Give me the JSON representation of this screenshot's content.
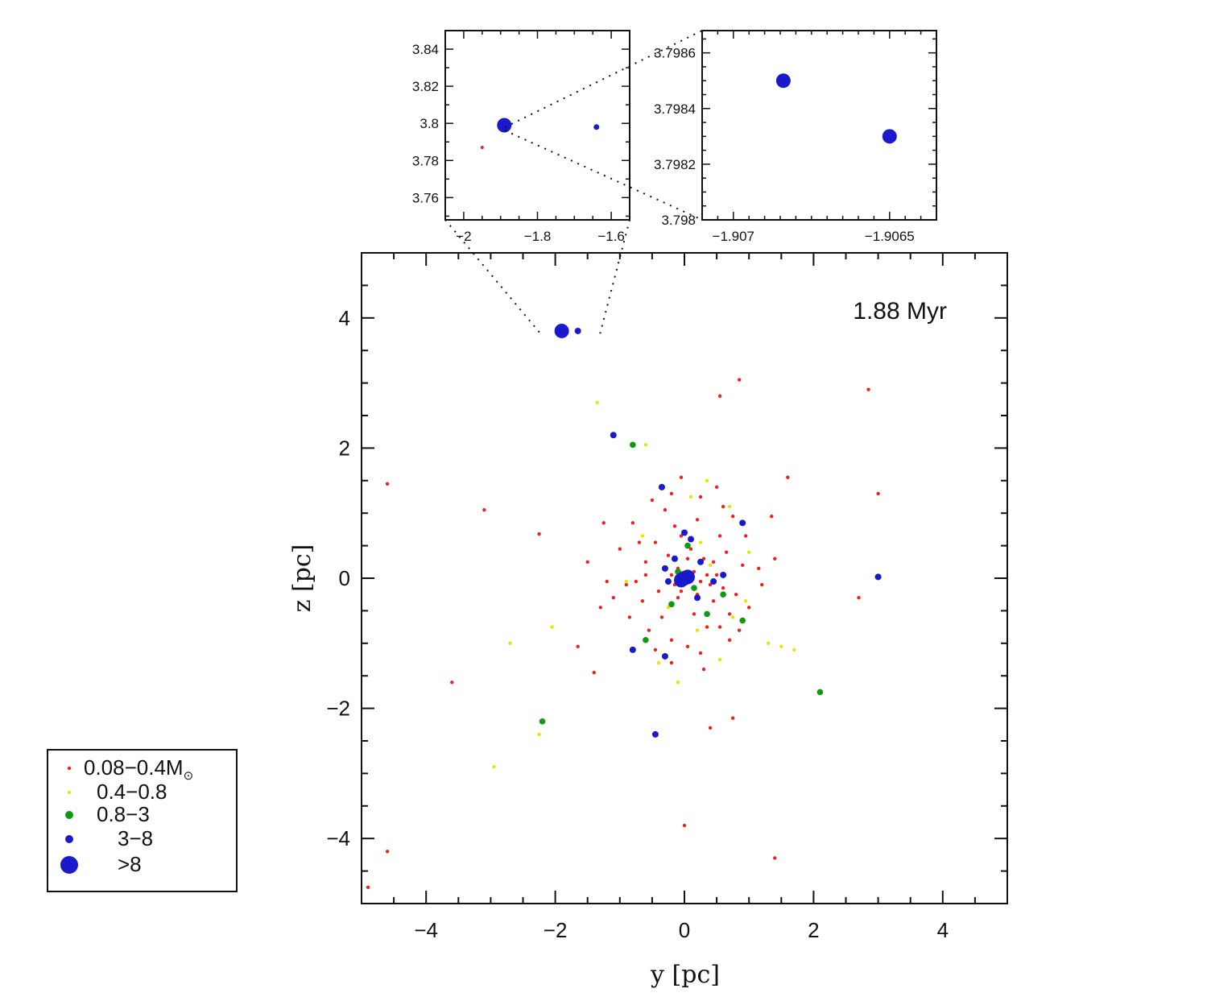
{
  "chart_data": [
    {
      "id": "main",
      "type": "scatter",
      "annotation": "1.88 Myr",
      "xlabel": "y [pc]",
      "ylabel": "z [pc]",
      "xlim": [
        -5,
        5
      ],
      "ylim": [
        -5,
        5
      ],
      "xticks": [
        "−4",
        "−2",
        "0",
        "2",
        "4"
      ],
      "yticks": [
        "−4",
        "−2",
        "0",
        "2",
        "4"
      ],
      "grid": false,
      "legend_position": "bottom-left (outside plot)",
      "series": [
        {
          "name": "0.08−0.4M⊙",
          "legend_label": "0.08−0.4M",
          "legend_sub": "⊙",
          "color": "#ee2222",
          "marker_size": 2.2,
          "points": [
            [
              0.85,
              3.05
            ],
            [
              0.55,
              2.8
            ],
            [
              2.85,
              2.9
            ],
            [
              -4.6,
              1.45
            ],
            [
              -3.1,
              1.05
            ],
            [
              -2.25,
              0.68
            ],
            [
              3.0,
              1.3
            ],
            [
              1.6,
              1.55
            ],
            [
              -0.05,
              1.55
            ],
            [
              -0.2,
              1.3
            ],
            [
              0.6,
              1.1
            ],
            [
              1.35,
              0.95
            ],
            [
              -1.25,
              0.85
            ],
            [
              -1.5,
              0.25
            ],
            [
              -1.3,
              -0.45
            ],
            [
              -1.65,
              -1.05
            ],
            [
              -1.4,
              -1.45
            ],
            [
              -3.6,
              -1.6
            ],
            [
              0.25,
              -1.15
            ],
            [
              0.7,
              -0.95
            ],
            [
              1.4,
              0.3
            ],
            [
              2.7,
              -0.3
            ],
            [
              0.75,
              -2.15
            ],
            [
              0.4,
              -2.3
            ],
            [
              0.0,
              -3.8
            ],
            [
              1.4,
              -4.3
            ],
            [
              -4.6,
              -4.2
            ],
            [
              -4.9,
              -4.75
            ],
            [
              -0.75,
              -0.05
            ],
            [
              -0.6,
              0.25
            ],
            [
              0.55,
              0.65
            ],
            [
              0.9,
              0.2
            ],
            [
              -0.9,
              -0.1
            ],
            [
              0.35,
              -0.75
            ],
            [
              -0.2,
              -0.95
            ],
            [
              0.45,
              -0.35
            ],
            [
              0.2,
              0.9
            ],
            [
              -0.45,
              0.55
            ],
            [
              0.7,
              -0.55
            ],
            [
              -0.35,
              -0.6
            ],
            [
              -0.05,
              0.65
            ],
            [
              0.85,
              -0.8
            ],
            [
              -0.65,
              -0.35
            ],
            [
              0.15,
              -0.55
            ],
            [
              -0.3,
              0.15
            ],
            [
              0.3,
              0.3
            ],
            [
              -0.1,
              -0.3
            ],
            [
              0.1,
              0.45
            ],
            [
              -0.55,
              -0.8
            ],
            [
              0.6,
              -0.15
            ],
            [
              0.25,
              1.25
            ],
            [
              -0.8,
              0.85
            ],
            [
              1.0,
              -0.45
            ],
            [
              -1.0,
              0.45
            ],
            [
              0.95,
              0.65
            ],
            [
              -0.2,
              -1.3
            ],
            [
              0.05,
              -1.05
            ],
            [
              -0.45,
              -1.1
            ],
            [
              0.5,
              0.05
            ],
            [
              -0.25,
              0.35
            ],
            [
              0.4,
              -0.1
            ],
            [
              0.2,
              -0.25
            ],
            [
              -0.15,
              -0.1
            ],
            [
              0.65,
              0.4
            ],
            [
              -0.7,
              0.55
            ],
            [
              1.15,
              0.15
            ],
            [
              -1.1,
              -0.3
            ],
            [
              0.3,
              -1.4
            ],
            [
              -0.3,
              1.05
            ],
            [
              0.75,
              0.95
            ],
            [
              0.15,
              0.1
            ],
            [
              -0.05,
              -0.2
            ],
            [
              0.1,
              -0.05
            ],
            [
              0.35,
              0.05
            ],
            [
              -0.4,
              -0.2
            ],
            [
              0.05,
              0.3
            ],
            [
              -0.2,
              0.05
            ],
            [
              0.55,
              -0.75
            ],
            [
              -0.6,
              0.05
            ],
            [
              0.45,
              0.25
            ],
            [
              -0.1,
              0.15
            ],
            [
              0.25,
              -0.05
            ],
            [
              0.1,
              0.6
            ],
            [
              -0.15,
              0.8
            ],
            [
              0.8,
              -0.25
            ],
            [
              -0.85,
              -0.6
            ],
            [
              0.5,
              1.4
            ],
            [
              -0.5,
              1.2
            ],
            [
              1.2,
              -0.1
            ],
            [
              -1.2,
              -0.05
            ]
          ]
        },
        {
          "name": "0.4−0.8",
          "color": "#e6e600",
          "marker_size": 2.2,
          "points": [
            [
              -1.35,
              2.7
            ],
            [
              -0.6,
              2.05
            ],
            [
              0.35,
              1.5
            ],
            [
              -2.05,
              -0.75
            ],
            [
              -2.7,
              -1.0
            ],
            [
              -2.25,
              -2.4
            ],
            [
              -2.95,
              -2.9
            ],
            [
              1.3,
              -1.0
            ],
            [
              1.5,
              -1.05
            ],
            [
              1.7,
              -1.1
            ],
            [
              1.0,
              0.4
            ],
            [
              -0.4,
              -1.3
            ],
            [
              0.25,
              0.55
            ],
            [
              -0.65,
              0.65
            ],
            [
              0.55,
              -1.25
            ],
            [
              0.95,
              -0.35
            ],
            [
              0.1,
              1.25
            ],
            [
              -0.9,
              -0.05
            ],
            [
              0.75,
              -0.6
            ],
            [
              -0.25,
              -0.45
            ],
            [
              0.4,
              0.2
            ],
            [
              -0.1,
              -1.6
            ],
            [
              0.7,
              1.1
            ],
            [
              0.2,
              -0.8
            ]
          ]
        },
        {
          "name": "0.8−3",
          "color": "#119911",
          "marker_size": 3.8,
          "points": [
            [
              -0.8,
              2.05
            ],
            [
              -2.2,
              -2.2
            ],
            [
              2.1,
              -1.75
            ],
            [
              0.9,
              -0.65
            ],
            [
              -0.6,
              -0.95
            ],
            [
              0.6,
              -0.25
            ],
            [
              -0.2,
              -0.4
            ],
            [
              0.05,
              0.5
            ],
            [
              0.35,
              -0.55
            ],
            [
              -0.1,
              0.1
            ],
            [
              0.15,
              -0.15
            ]
          ]
        },
        {
          "name": "3−8",
          "color": "#1a1acc",
          "marker_size": 4.0,
          "points": [
            [
              -1.1,
              2.2
            ],
            [
              -0.35,
              1.4
            ],
            [
              0.9,
              0.85
            ],
            [
              3.0,
              0.02
            ],
            [
              -0.8,
              -1.1
            ],
            [
              -0.3,
              -1.2
            ],
            [
              -0.45,
              -2.4
            ],
            [
              0.45,
              -0.05
            ],
            [
              -0.25,
              -0.05
            ],
            [
              0.0,
              0.7
            ],
            [
              0.1,
              0.6
            ],
            [
              -0.15,
              0.3
            ],
            [
              0.25,
              0.25
            ],
            [
              0.6,
              0.05
            ],
            [
              0.2,
              -0.3
            ],
            [
              -0.3,
              0.15
            ],
            [
              -1.65,
              3.8
            ]
          ]
        },
        {
          "name": ">8",
          "color": "#1a1acc",
          "marker_size": 9.0,
          "points": [
            [
              -1.9,
              3.8
            ],
            [
              0.0,
              0.0
            ],
            [
              0.05,
              0.02
            ],
            [
              -0.05,
              -0.03
            ]
          ]
        }
      ]
    },
    {
      "id": "inset-1",
      "type": "scatter",
      "xlim": [
        -2.05,
        -1.55
      ],
      "ylim": [
        3.748,
        3.85
      ],
      "xticks": [
        "−2",
        "−1.8",
        "−1.6"
      ],
      "yticks": [
        "3.76",
        "3.78",
        "3.8",
        "3.82",
        "3.84"
      ],
      "points": [
        {
          "x": -1.89,
          "y": 3.799,
          "series": ">8"
        },
        {
          "x": -1.64,
          "y": 3.798,
          "series": "3−8"
        },
        {
          "x": -1.95,
          "y": 3.787,
          "series": "0.08−0.4M⊙"
        }
      ]
    },
    {
      "id": "inset-2",
      "type": "scatter",
      "xlim": [
        -1.9071,
        -1.90635
      ],
      "ylim": [
        3.798,
        3.79868
      ],
      "xticks": [
        "−1.907",
        "−1.9065"
      ],
      "yticks": [
        "3.798",
        "3.7982",
        "3.7984",
        "3.7986"
      ],
      "points": [
        {
          "x": -1.90684,
          "y": 3.7985,
          "series": ">8"
        },
        {
          "x": -1.9065,
          "y": 3.7983,
          "series": ">8"
        }
      ]
    }
  ]
}
